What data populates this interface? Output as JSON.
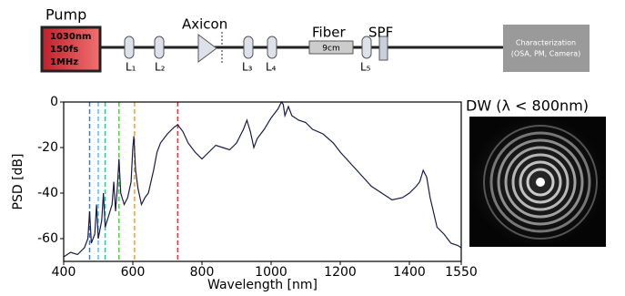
{
  "diagram": {
    "pump_label": "Pump",
    "pump_specs": [
      "1030nm",
      "150fs",
      "1MHz"
    ],
    "lenses": [
      "L₁",
      "L₂",
      "L₃",
      "L₄",
      "L₅"
    ],
    "axicon": "Axicon",
    "fiber": "Fiber",
    "fiber_length": "9cm",
    "filter": "SPF",
    "characterization": [
      "Characterization",
      "(OSA, PM, Camera)"
    ]
  },
  "image": {
    "title": "DW (λ < 800nm)"
  },
  "chart_data": {
    "type": "line",
    "xlabel": "Wavelength [nm]",
    "ylabel": "PSD [dB]",
    "x": [
      400,
      420,
      440,
      460,
      470,
      475,
      480,
      490,
      495,
      500,
      510,
      515,
      520,
      530,
      540,
      545,
      550,
      555,
      560,
      565,
      575,
      585,
      595,
      600,
      603,
      608,
      615,
      625,
      635,
      645,
      660,
      670,
      680,
      700,
      720,
      730,
      745,
      760,
      780,
      800,
      820,
      840,
      860,
      880,
      900,
      920,
      930,
      940,
      950,
      960,
      980,
      1000,
      1020,
      1030,
      1035,
      1040,
      1050,
      1060,
      1080,
      1100,
      1120,
      1150,
      1180,
      1200,
      1230,
      1260,
      1290,
      1320,
      1350,
      1380,
      1400,
      1420,
      1430,
      1440,
      1450,
      1460,
      1480,
      1500,
      1520,
      1540,
      1550
    ],
    "series": [
      {
        "color": "#1a1a4a",
        "values": [
          -68,
          -66,
          -67,
          -64,
          -60,
          -48,
          -62,
          -58,
          -45,
          -60,
          -52,
          -40,
          -55,
          -50,
          -45,
          -35,
          -48,
          -38,
          -25,
          -40,
          -45,
          -42,
          -35,
          -20,
          -15,
          -30,
          -38,
          -45,
          -42,
          -40,
          -30,
          -22,
          -18,
          -14,
          -11,
          -10,
          -13,
          -18,
          -22,
          -25,
          -22,
          -19,
          -20,
          -21,
          -18,
          -12,
          -8,
          -13,
          -20,
          -16,
          -12,
          -7,
          -3,
          0,
          -1,
          -6,
          -2,
          -6,
          -8,
          -9,
          -12,
          -14,
          -18,
          -22,
          -27,
          -32,
          -37,
          -40,
          -43,
          -42,
          -40,
          -37,
          -35,
          -30,
          -33,
          -42,
          -55,
          -58,
          -62,
          -63,
          -64
        ]
      }
    ],
    "markers": [
      {
        "x": 475,
        "color": "#3a7bd5"
      },
      {
        "x": 500,
        "color": "#4fc3f7"
      },
      {
        "x": 520,
        "color": "#26c6a0"
      },
      {
        "x": 560,
        "color": "#4cd137"
      },
      {
        "x": 605,
        "color": "#f0a030"
      },
      {
        "x": 730,
        "color": "#e03030"
      }
    ],
    "xlim": [
      400,
      1550
    ],
    "ylim": [
      -70,
      0
    ],
    "xticks": [
      400,
      600,
      800,
      1000,
      1200,
      1400,
      1550
    ],
    "yticks": [
      0,
      -20,
      -40,
      -60
    ]
  }
}
